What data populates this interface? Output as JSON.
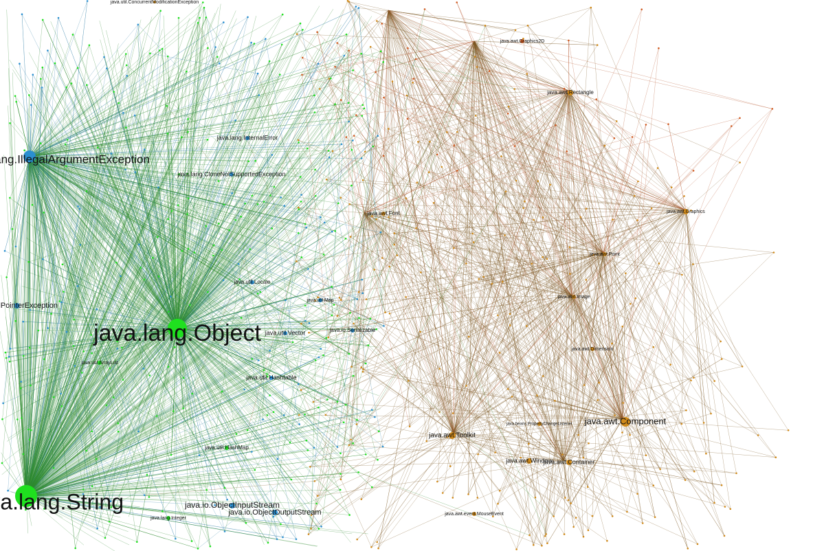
{
  "nodes": [
    {
      "label": "java.util.ConcurrentModificationException"
    },
    {
      "label": "java.awt.Graphics2D"
    },
    {
      "label": "java.awt.Rectangle"
    },
    {
      "label": "java.lang.InternalError"
    },
    {
      "label": "java.lang.IllegalArgumentException"
    },
    {
      "label": "java.lang.CloneNotSupportedException"
    },
    {
      "label": "java.awt.Font"
    },
    {
      "label": "java.awt.Graphics"
    },
    {
      "label": "java.awt.Point"
    },
    {
      "label": "java.awt.Image"
    },
    {
      "label": "java.util.Locale"
    },
    {
      "label": "java.util.Map"
    },
    {
      "label": "java.lang.NullPointerException"
    },
    {
      "label": "java.lang.Object"
    },
    {
      "label": "java.util.Vector"
    },
    {
      "label": "java.io.Serializable"
    },
    {
      "label": "java.awt.Dimension"
    },
    {
      "label": "java.util.Hashtable"
    },
    {
      "label": "java.util.ArrayList"
    },
    {
      "label": "java.awt.Component"
    },
    {
      "label": "java.awt.Toolkit"
    },
    {
      "label": "java.beans.PropertyChangeListener"
    },
    {
      "label": "java.awt.Window"
    },
    {
      "label": "java.awt.Container"
    },
    {
      "label": "java.util.HashMap"
    },
    {
      "label": "java.io.ObjectInputStream"
    },
    {
      "label": "java.io.ObjectOutputStream"
    },
    {
      "label": "java.lang.String"
    },
    {
      "label": "java.lang.Integer"
    },
    {
      "label": "java.awt.event.MouseEvent"
    }
  ]
}
